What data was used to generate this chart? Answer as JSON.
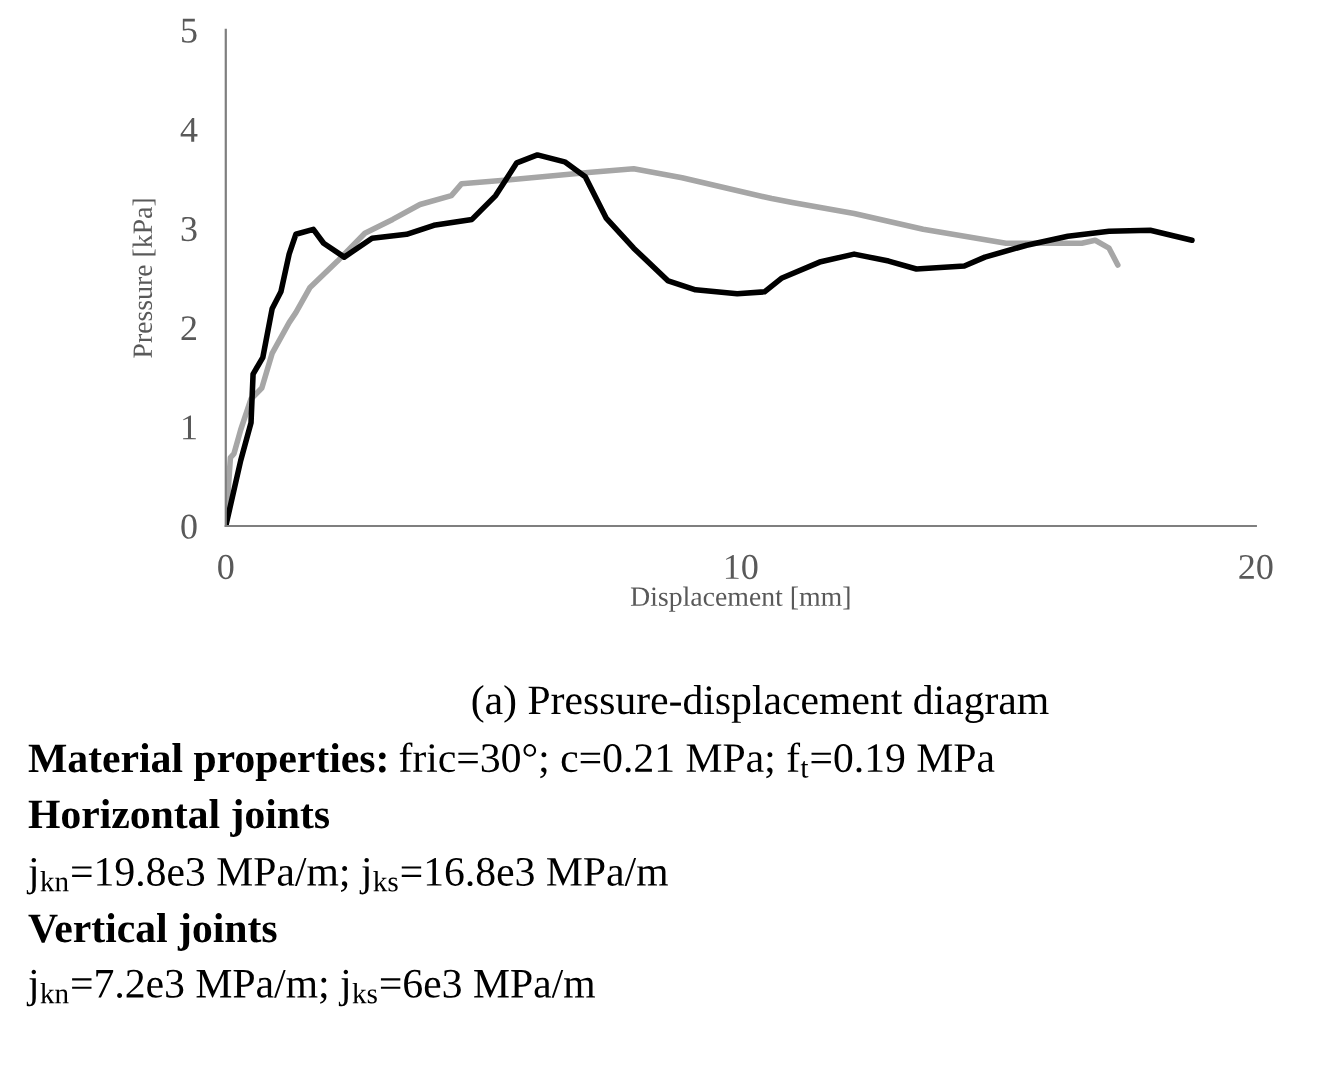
{
  "chart_data": {
    "type": "line",
    "xlabel": "Displacement [mm]",
    "ylabel": "Pressure [kPa]",
    "xlim": [
      0,
      20
    ],
    "xticks": [
      0,
      10,
      20
    ],
    "ylim": [
      0,
      5
    ],
    "yticks": [
      0,
      1,
      2,
      3,
      4,
      5
    ],
    "grid": false,
    "legend": false,
    "marker": "none",
    "line_style": "solid",
    "series": [
      {
        "color": "#a6a6a6",
        "x": [
          0,
          0.09,
          0.16,
          0.29,
          0.49,
          0.7,
          0.9,
          1.23,
          1.36,
          1.63,
          2.17,
          2.7,
          3.24,
          3.77,
          4.38,
          4.58,
          5.52,
          6.98,
          7.92,
          8.86,
          10.6,
          11.0,
          12.2,
          13.54,
          15.15,
          16.62,
          16.88,
          17.15,
          17.32
        ],
        "values": [
          0,
          0.69,
          0.73,
          0.97,
          1.28,
          1.39,
          1.74,
          2.05,
          2.15,
          2.4,
          2.67,
          2.95,
          3.09,
          3.24,
          3.33,
          3.45,
          3.49,
          3.56,
          3.6,
          3.51,
          3.3,
          3.26,
          3.15,
          2.99,
          2.85,
          2.85,
          2.88,
          2.8,
          2.63
        ]
      },
      {
        "color": "#000000",
        "x": [
          0,
          0.29,
          0.49,
          0.53,
          0.72,
          0.9,
          1.07,
          1.23,
          1.36,
          1.7,
          1.9,
          2.3,
          2.84,
          3.51,
          4.04,
          4.78,
          5.24,
          5.65,
          6.05,
          6.58,
          6.98,
          7.39,
          7.92,
          8.59,
          9.12,
          9.93,
          10.46,
          10.8,
          11.53,
          12.2,
          12.87,
          13.41,
          14.34,
          14.74,
          15.55,
          16.35,
          17.15,
          17.95,
          18.76
        ],
        "values": [
          0,
          0.66,
          1.04,
          1.53,
          1.7,
          2.19,
          2.36,
          2.74,
          2.94,
          2.99,
          2.85,
          2.71,
          2.9,
          2.94,
          3.03,
          3.09,
          3.33,
          3.66,
          3.74,
          3.67,
          3.52,
          3.1,
          2.8,
          2.47,
          2.38,
          2.34,
          2.36,
          2.5,
          2.66,
          2.74,
          2.67,
          2.59,
          2.62,
          2.71,
          2.83,
          2.92,
          2.97,
          2.98,
          2.88
        ]
      }
    ],
    "annotations": [
      "(a) Pressure-displacement diagram",
      "Material properties:",
      "fric=30°; c=0.21 MPa; f$_{t}$=0.19 MPa",
      "Horizontal joints",
      "j$_{kn}$=19.8e3 MPa/m; j$_{ks}$=16.8e3 MPa/m",
      "Vertical joints",
      "j$_{kn}$=7.2e3 MPa/m; j$_{ks}$=6e3 MPa/m"
    ]
  }
}
